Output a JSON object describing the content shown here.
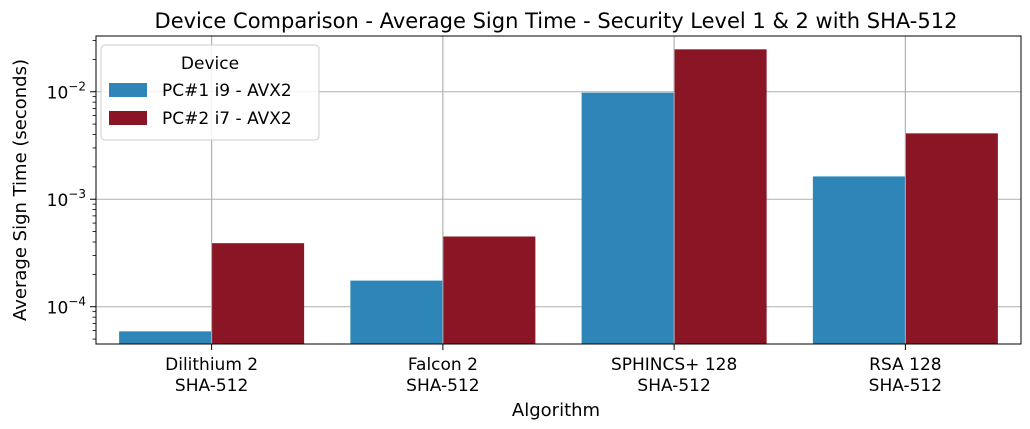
{
  "chart_data": {
    "type": "bar",
    "title": "Device Comparison - Average Sign Time - Security Level 1 & 2 with SHA-512",
    "xlabel": "Algorithm",
    "ylabel": "Average Sign Time (seconds)",
    "yscale": "log",
    "ylim": [
      4.5e-05,
      0.033
    ],
    "yticks": [
      {
        "value": 0.0001,
        "base": "10",
        "exp": "−4"
      },
      {
        "value": 0.001,
        "base": "10",
        "exp": "−3"
      },
      {
        "value": 0.01,
        "base": "10",
        "exp": "−2"
      }
    ],
    "grid": true,
    "categories": [
      [
        "Dilithium 2",
        "SHA-512"
      ],
      [
        "Falcon 2",
        "SHA-512"
      ],
      [
        "SPHINCS+ 128",
        "SHA-512"
      ],
      [
        "RSA 128",
        "SHA-512"
      ]
    ],
    "legend": {
      "title": "Device",
      "position": "top-left"
    },
    "series": [
      {
        "name": "PC#1 i9 - AVX2",
        "color": "#2e86b8",
        "values": [
          5.9e-05,
          0.000175,
          0.0098,
          0.00163
        ]
      },
      {
        "name": "PC#2 i7 - AVX2",
        "color": "#8a1524",
        "values": [
          0.00039,
          0.00045,
          0.0248,
          0.0041
        ]
      }
    ]
  }
}
